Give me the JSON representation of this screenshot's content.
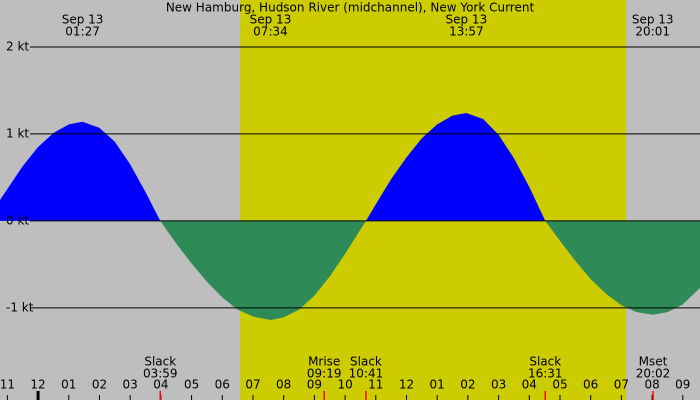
{
  "chart_data": {
    "type": "area",
    "title": "New Hamburg, Hudson River (midchannel), New York Current",
    "x": [
      -1.24,
      -0.5,
      0,
      0.5,
      1,
      1.45,
      2,
      2.5,
      3,
      3.5,
      3.98,
      4.5,
      5,
      5.5,
      6,
      6.5,
      7,
      7.57,
      8,
      8.5,
      9,
      9.5,
      10,
      10.68,
      11,
      11.5,
      12,
      12.5,
      13,
      13.5,
      13.95,
      14.5,
      15,
      15.5,
      16,
      16.52,
      17,
      17.5,
      18,
      18.5,
      19,
      19.5,
      20.02,
      20.5,
      21,
      21.56
    ],
    "values": [
      0.24,
      0.63,
      0.85,
      1.01,
      1.11,
      1.14,
      1.07,
      0.91,
      0.65,
      0.33,
      0,
      -0.26,
      -0.49,
      -0.7,
      -0.88,
      -1.02,
      -1.1,
      -1.14,
      -1.11,
      -1.02,
      -0.86,
      -0.64,
      -0.38,
      0,
      0.19,
      0.48,
      0.73,
      0.95,
      1.11,
      1.21,
      1.24,
      1.17,
      0.99,
      0.72,
      0.39,
      0,
      -0.23,
      -0.46,
      -0.67,
      -0.84,
      -0.97,
      -1.05,
      -1.08,
      -1.05,
      -0.96,
      -0.77
    ],
    "flood_color": "#0000ff",
    "ebb_color": "#2e8b57",
    "night_color": "#bebebe",
    "day_color": "#cccc00",
    "daylight": [
      6.58,
      19.15
    ],
    "xlim": [
      -1.24,
      21.56
    ],
    "ylim": [
      -2.06,
      2.54
    ],
    "yticks": [
      {
        "value": 2,
        "label": "2 kt"
      },
      {
        "value": 1,
        "label": "1 kt"
      },
      {
        "value": 0,
        "label": "0 kt"
      },
      {
        "value": -1,
        "label": "-1 kt"
      }
    ],
    "xticks": [
      {
        "value": -1,
        "label": "11"
      },
      {
        "value": 0,
        "label": "12"
      },
      {
        "value": 1,
        "label": "01"
      },
      {
        "value": 2,
        "label": "02"
      },
      {
        "value": 3,
        "label": "03"
      },
      {
        "value": 4,
        "label": "04"
      },
      {
        "value": 5,
        "label": "05"
      },
      {
        "value": 6,
        "label": "06"
      },
      {
        "value": 7,
        "label": "07"
      },
      {
        "value": 8,
        "label": "08"
      },
      {
        "value": 9,
        "label": "09"
      },
      {
        "value": 10,
        "label": "10"
      },
      {
        "value": 11,
        "label": "11"
      },
      {
        "value": 12,
        "label": "12"
      },
      {
        "value": 13,
        "label": "01"
      },
      {
        "value": 14,
        "label": "02"
      },
      {
        "value": 15,
        "label": "03"
      },
      {
        "value": 16,
        "label": "04"
      },
      {
        "value": 17,
        "label": "05"
      },
      {
        "value": 18,
        "label": "06"
      },
      {
        "value": 19,
        "label": "07"
      },
      {
        "value": 20,
        "label": "08"
      },
      {
        "value": 21,
        "label": "09"
      }
    ],
    "events_top": [
      {
        "date": "Sep 13",
        "time": "01:27",
        "x": 1.45
      },
      {
        "date": "Sep 13",
        "time": "07:34",
        "x": 7.57
      },
      {
        "date": "Sep 13",
        "time": "13:57",
        "x": 13.95
      },
      {
        "date": "Sep 13",
        "time": "20:01",
        "x": 20.02
      }
    ],
    "events_bottom": [
      {
        "label": "Slack",
        "time": "03:59",
        "x": 3.98
      },
      {
        "label": "Mrise",
        "time": "09:19",
        "x": 9.32
      },
      {
        "label": "Slack",
        "time": "10:41",
        "x": 10.68
      },
      {
        "label": "Slack",
        "time": "16:31",
        "x": 16.52
      },
      {
        "label": "Mset",
        "time": "20:02",
        "x": 20.03
      }
    ]
  }
}
